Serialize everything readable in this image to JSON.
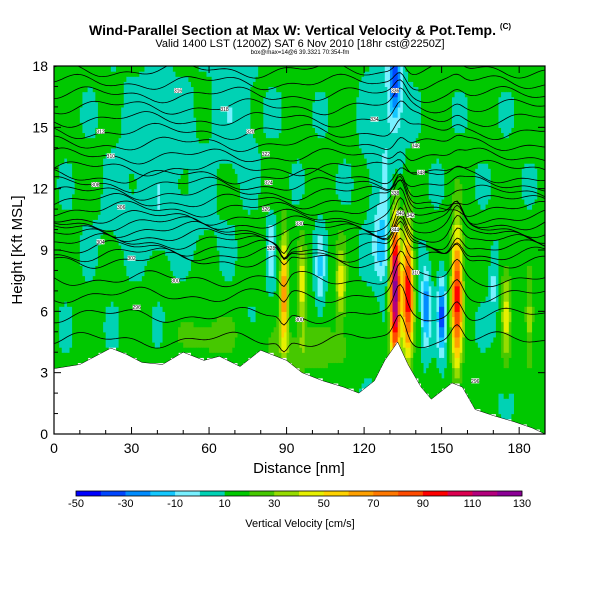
{
  "header": {
    "title": "Wind-Parallel Section at Max W: Vertical Velocity & Pot.Temp.",
    "copyright": "(C)",
    "valid": "Valid 1400 LST (1200Z) SAT 6 Nov 2010 [18hr cst@2250Z]",
    "sub": "box@max=14@6 39.3321 70:354-fm"
  },
  "chart_data": {
    "type": "heatmap",
    "title": "Wind-Parallel Section at Max W: Vertical Velocity & Pot.Temp.",
    "xlabel": "Distance [nm]",
    "ylabel": "Height [Kft MSL]",
    "xlim": [
      0,
      190
    ],
    "ylim": [
      0,
      18
    ],
    "xticks": [
      "0",
      "30",
      "60",
      "90",
      "120",
      "150",
      "180"
    ],
    "xtick_values": [
      0,
      30,
      60,
      90,
      120,
      150,
      180
    ],
    "yticks": [
      "0",
      "3",
      "6",
      "9",
      "12",
      "15",
      "18"
    ],
    "ytick_values": [
      0,
      3,
      6,
      9,
      12,
      15,
      18
    ],
    "colorbar": {
      "label": "Vertical Velocity [cm/s]",
      "levels": [
        -50,
        -40,
        -30,
        -20,
        -10,
        0,
        10,
        20,
        30,
        40,
        50,
        60,
        70,
        80,
        90,
        100,
        110,
        120,
        130
      ],
      "tick_labels": [
        "-50",
        "-30",
        "-10",
        "10",
        "30",
        "50",
        "70",
        "90",
        "110",
        "130"
      ],
      "colors": [
        "#0000ff",
        "#0046ff",
        "#008cff",
        "#14c8ff",
        "#78f0ff",
        "#00d2b4",
        "#00c800",
        "#46c800",
        "#96dc00",
        "#e6f000",
        "#ffd200",
        "#ffa000",
        "#ff7800",
        "#ff4b00",
        "#ff0000",
        "#dc0050",
        "#b4007d",
        "#8c0096"
      ]
    },
    "background_w": 12,
    "terrain": [
      [
        0,
        3.2
      ],
      [
        10,
        3.4
      ],
      [
        22,
        4.2
      ],
      [
        28,
        3.9
      ],
      [
        34,
        3.5
      ],
      [
        42,
        3.4
      ],
      [
        50,
        4.0
      ],
      [
        58,
        3.6
      ],
      [
        64,
        3.8
      ],
      [
        72,
        3.3
      ],
      [
        80,
        4.1
      ],
      [
        90,
        3.6
      ],
      [
        96,
        3.0
      ],
      [
        104,
        2.6
      ],
      [
        112,
        2.3
      ],
      [
        118,
        2.0
      ],
      [
        124,
        2.6
      ],
      [
        128,
        3.6
      ],
      [
        133,
        4.5
      ],
      [
        137,
        3.4
      ],
      [
        142,
        2.3
      ],
      [
        146,
        1.7
      ],
      [
        150,
        2.1
      ],
      [
        154,
        2.5
      ],
      [
        158,
        2.3
      ],
      [
        163,
        1.2
      ],
      [
        170,
        0.9
      ],
      [
        178,
        0.6
      ],
      [
        185,
        0.3
      ],
      [
        190,
        0.0
      ]
    ],
    "blobs": [
      {
        "x": 132,
        "y": 7.0,
        "sx": 1.4,
        "sy": 2.6,
        "w": 118
      },
      {
        "x": 137,
        "y": 7.0,
        "sx": 1.4,
        "sy": 2.2,
        "w": 88
      },
      {
        "x": 156,
        "y": 6.8,
        "sx": 1.5,
        "sy": 2.4,
        "w": 84
      },
      {
        "x": 89,
        "y": 7.0,
        "sx": 1.1,
        "sy": 2.0,
        "w": 58
      },
      {
        "x": 96,
        "y": 7.2,
        "sx": 1.2,
        "sy": 1.6,
        "w": 34
      },
      {
        "x": 111,
        "y": 7.3,
        "sx": 1.4,
        "sy": 1.5,
        "w": 32
      },
      {
        "x": 150,
        "y": 5.8,
        "sx": 1.1,
        "sy": 1.3,
        "w": -48
      },
      {
        "x": 144,
        "y": 6.2,
        "sx": 1.2,
        "sy": 1.3,
        "w": -40
      },
      {
        "x": 132,
        "y": 17.2,
        "sx": 1.6,
        "sy": 1.3,
        "w": -45
      },
      {
        "x": 127,
        "y": 9.2,
        "sx": 2.2,
        "sy": 1.2,
        "w": -28
      },
      {
        "x": 128,
        "y": 14.5,
        "sx": 5.0,
        "sy": 3.5,
        "w": -12
      },
      {
        "x": 103,
        "y": 8.0,
        "sx": 1.2,
        "sy": 1.5,
        "w": -22
      },
      {
        "x": 84,
        "y": 9.0,
        "sx": 1.0,
        "sy": 1.2,
        "w": -20
      },
      {
        "x": 40,
        "y": 10.2,
        "sx": 14.0,
        "sy": 1.0,
        "w": -8
      },
      {
        "x": 40,
        "y": 14.0,
        "sx": 10.0,
        "sy": 2.5,
        "w": -9
      },
      {
        "x": 70,
        "y": 15.5,
        "sx": 6.0,
        "sy": 2.0,
        "w": -9
      },
      {
        "x": 175,
        "y": 6.0,
        "sx": 1.3,
        "sy": 1.8,
        "w": 30
      },
      {
        "x": 170,
        "y": 7.2,
        "sx": 1.2,
        "sy": 1.2,
        "w": -15
      },
      {
        "x": 184,
        "y": 5.5,
        "sx": 1.2,
        "sy": 1.5,
        "w": 25
      },
      {
        "x": 60,
        "y": 4.8,
        "sx": 8.0,
        "sy": 0.8,
        "w": 14
      },
      {
        "x": 100,
        "y": 4.2,
        "sx": 12.0,
        "sy": 0.8,
        "w": 16
      }
    ],
    "theta_levels": [
      13.0,
      13.6,
      14.2,
      14.8,
      15.4,
      16.0,
      16.6,
      17.2,
      17.8,
      8.5,
      8.8,
      9.1,
      9.4,
      9.7,
      10.0,
      10.3,
      10.6,
      11.0,
      11.4,
      11.8,
      12.2,
      12.6,
      7.6,
      6.8,
      5.8,
      4.6
    ],
    "contour_labels": [
      {
        "x": 32,
        "y": 6.2,
        "text": "296"
      },
      {
        "x": 47,
        "y": 7.5,
        "text": "300"
      },
      {
        "x": 30,
        "y": 8.6,
        "text": "302"
      },
      {
        "x": 18,
        "y": 9.4,
        "text": "304"
      },
      {
        "x": 26,
        "y": 11.1,
        "text": "306"
      },
      {
        "x": 16,
        "y": 12.2,
        "text": "308"
      },
      {
        "x": 22,
        "y": 13.6,
        "text": "310"
      },
      {
        "x": 18,
        "y": 14.8,
        "text": "312"
      },
      {
        "x": 48,
        "y": 16.8,
        "text": "316"
      },
      {
        "x": 66,
        "y": 15.9,
        "text": "318"
      },
      {
        "x": 76,
        "y": 14.8,
        "text": "320"
      },
      {
        "x": 82,
        "y": 13.7,
        "text": "322"
      },
      {
        "x": 83,
        "y": 12.3,
        "text": "324"
      },
      {
        "x": 82,
        "y": 11.0,
        "text": "326"
      },
      {
        "x": 84,
        "y": 9.1,
        "text": "328"
      },
      {
        "x": 95,
        "y": 10.3,
        "text": "330"
      },
      {
        "x": 95,
        "y": 5.6,
        "text": "300"
      },
      {
        "x": 124,
        "y": 15.4,
        "text": "334"
      },
      {
        "x": 132,
        "y": 16.8,
        "text": "336"
      },
      {
        "x": 132,
        "y": 11.8,
        "text": "338"
      },
      {
        "x": 134,
        "y": 10.8,
        "text": "340"
      },
      {
        "x": 138,
        "y": 10.7,
        "text": "342"
      },
      {
        "x": 132,
        "y": 10.0,
        "text": "344"
      },
      {
        "x": 140,
        "y": 14.1,
        "text": "346"
      },
      {
        "x": 142,
        "y": 12.8,
        "text": "348"
      },
      {
        "x": 140,
        "y": 7.9,
        "text": "310"
      },
      {
        "x": 163,
        "y": 2.6,
        "text": "296"
      }
    ]
  }
}
